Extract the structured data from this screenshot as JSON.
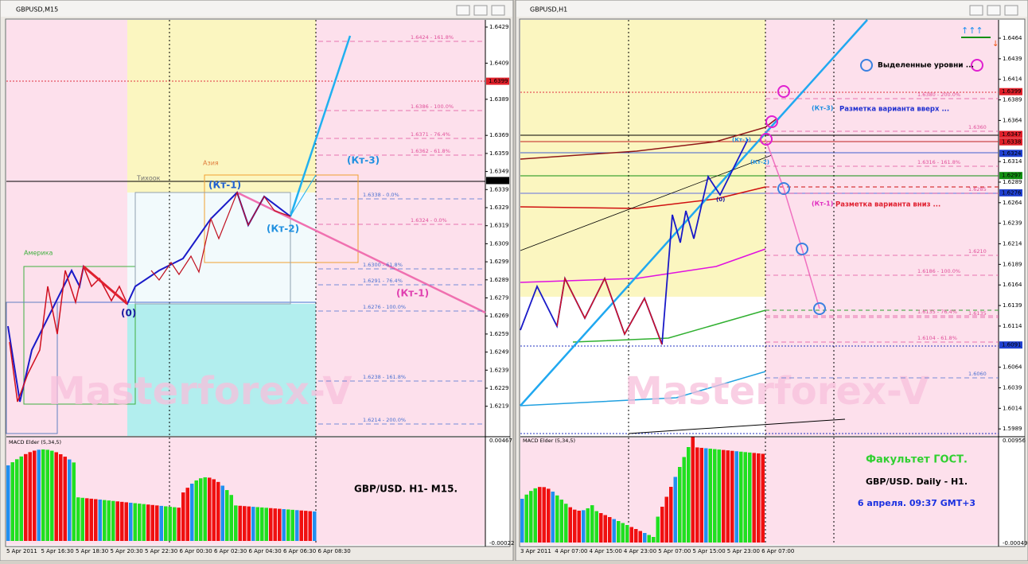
{
  "windows": [
    {
      "title": "GBPUSD,M15",
      "price_ticks": [
        "1.6429",
        "1.6409",
        "1.6389",
        "1.6369",
        "1.6359",
        "1.6349",
        "1.6339",
        "1.6329",
        "1.6319",
        "1.6309",
        "1.6299",
        "1.6289",
        "1.6279",
        "1.6269",
        "1.6259",
        "1.6249",
        "1.6239",
        "1.6229",
        "1.6219"
      ],
      "price_markers": [
        {
          "label": "1.6399",
          "color": "#e0202a"
        },
        {
          "label": "1.6344",
          "color": "#000000"
        }
      ],
      "fib_labels": [
        "1.6424 - 161.8%",
        "1.6386 - 100.0%",
        "1.6371 - 76.4%",
        "1.6362 - 61.8%",
        "1.6338 - 0.0%",
        "1.6324 - 0.0%",
        "1.6300 - 61.8%",
        "1.6291 - 76.4%",
        "1.6276 - 100.0%",
        "1.6238 - 161.8%",
        "1.6214 - 200.0%"
      ],
      "annotations": [
        "(Кт-1)",
        "(Кт-2)",
        "(Кт-3)",
        "(0)",
        "(Кт-1)",
        "Америка",
        "Азия",
        "Тихоок"
      ],
      "watermark": "Masterforex-V",
      "macd_title": "MACD Elder (5,34,5)",
      "macd_ticks": [
        "0.00467",
        "-0.00022"
      ],
      "caption": "GBP/USD.  H1- M15.",
      "time_labels": [
        "5 Apr 2011",
        "5 Apr 16:30",
        "5 Apr 18:30",
        "5 Apr 20:30",
        "5 Apr 22:30",
        "6 Apr 00:30",
        "6 Apr 02:30",
        "6 Apr 04:30",
        "6 Apr 06:30",
        "6 Apr 08:30"
      ]
    },
    {
      "title": "GBPUSD,H1",
      "price_ticks": [
        "1.6464",
        "1.6439",
        "1.6414",
        "1.6389",
        "1.6364",
        "1.6314",
        "1.6289",
        "1.6264",
        "1.6239",
        "1.6214",
        "1.6189",
        "1.6164",
        "1.6139",
        "1.6114",
        "1.6064",
        "1.6039",
        "1.6014",
        "1.5989"
      ],
      "price_markers": [
        {
          "label": "1.6399",
          "color": "#e0202a"
        },
        {
          "label": "1.6347",
          "color": "#e0202a"
        },
        {
          "label": "1.6338",
          "color": "#e0202a"
        },
        {
          "label": "1.6324",
          "color": "#2040d0"
        },
        {
          "label": "1.6297",
          "color": "#109010"
        },
        {
          "label": "1.6276",
          "color": "#2040d0"
        },
        {
          "label": "1.6091",
          "color": "#2040d0"
        }
      ],
      "fib_labels": [
        "1.6380 - 200.0%",
        "1.6360",
        "1.6316 - 161.8%",
        "1.6285",
        "1.6210",
        "1.6186 - 100.0%",
        "1.6135 - 76.4%",
        "1.6135",
        "1.6104 - 61.8%",
        "1.6060"
      ],
      "annotations": [
        "Выделенные уровни ...",
        "(Кт-3)",
        "Разметка варианта вверх ...",
        "(Кт-1)",
        "Разметка варианта вниз ...",
        "(Кт-1)",
        "(Кт-2)",
        "(0)"
      ],
      "watermark": "Masterforex-V",
      "macd_title": "MACD Elder (5,34,5)",
      "macd_ticks": [
        "0.00956",
        "-0.00049"
      ],
      "captions": [
        "Факультет ГОСТ.",
        "GBP/USD. Daily - H1.",
        "6 апреля. 09:37 GMT+3"
      ],
      "time_labels": [
        "3 Apr 2011",
        "4 Apr 07:00",
        "4 Apr 15:00",
        "4 Apr 23:00",
        "5 Apr 07:00",
        "5 Apr 15:00",
        "5 Apr 23:00",
        "6 Apr 07:00"
      ]
    }
  ]
}
